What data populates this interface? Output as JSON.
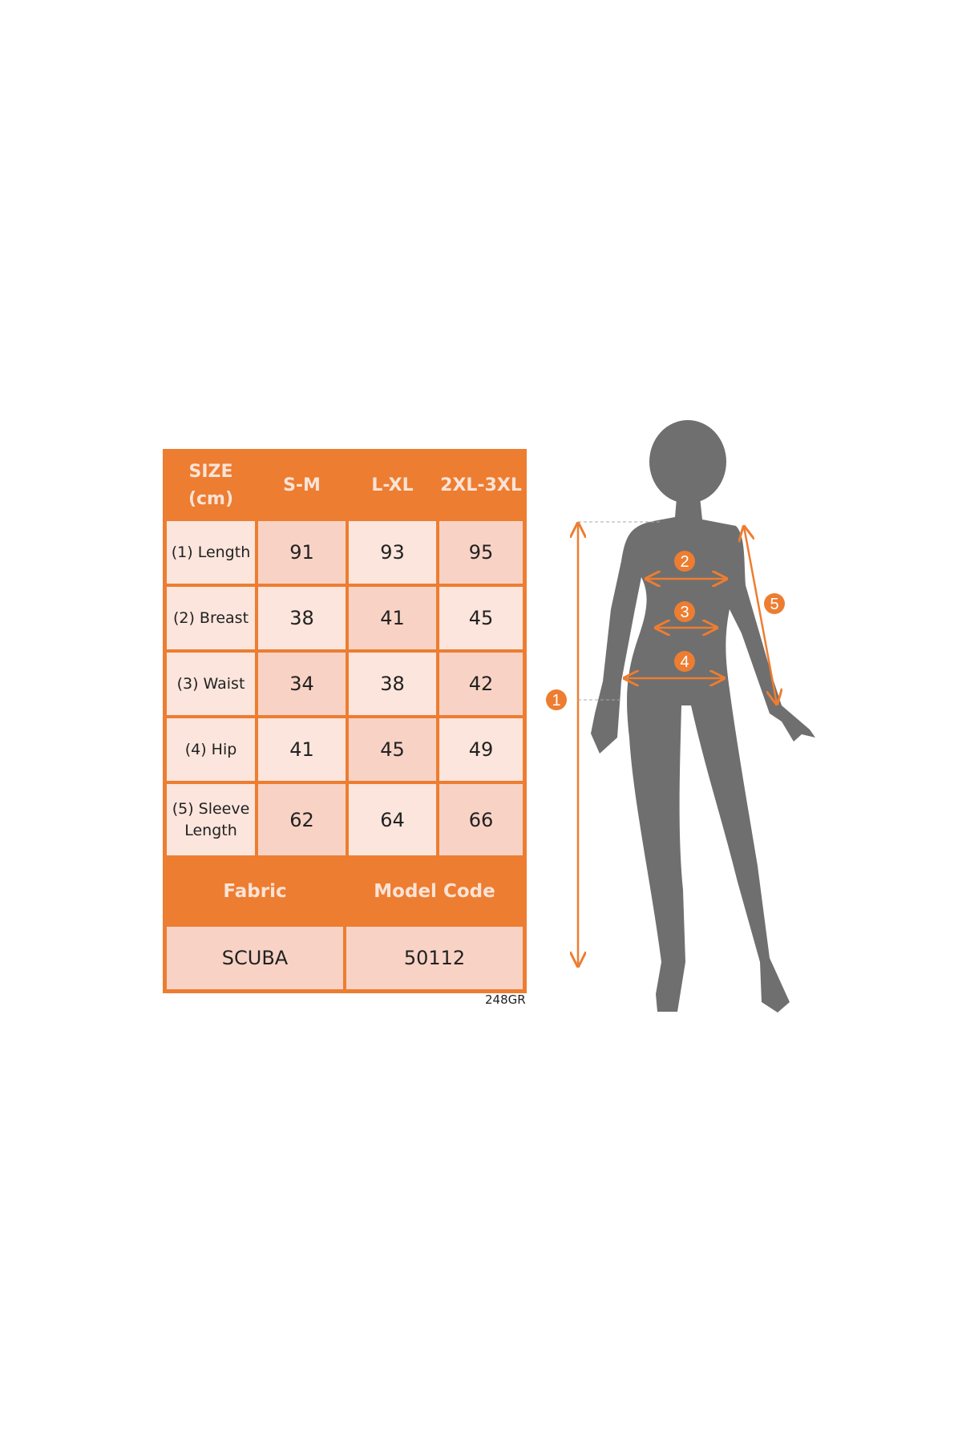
{
  "size_table": {
    "headers": [
      "SIZE (cm)",
      "S-M",
      "L-XL",
      "2XL-3XL"
    ],
    "rows": [
      {
        "label": "(1) Length",
        "values": [
          "91",
          "93",
          "95"
        ]
      },
      {
        "label": "(2) Breast",
        "values": [
          "38",
          "41",
          "45"
        ]
      },
      {
        "label": "(3) Waist",
        "values": [
          "34",
          "38",
          "42"
        ]
      },
      {
        "label": "(4) Hip",
        "values": [
          "41",
          "45",
          "49"
        ]
      },
      {
        "label": "(5) Sleeve Length",
        "values": [
          "62",
          "64",
          "66"
        ]
      }
    ],
    "footer_headers": [
      "Fabric",
      "Model Code"
    ],
    "footer_values": [
      "SCUBA",
      "50112"
    ]
  },
  "product_code": "248GR",
  "markers": [
    "1",
    "2",
    "3",
    "4",
    "5"
  ],
  "colors": {
    "accent": "#ed7d31",
    "cell_dark": "#f8d3c5",
    "cell_light": "#fbe5dc",
    "silhouette": "#6f6f6f"
  }
}
